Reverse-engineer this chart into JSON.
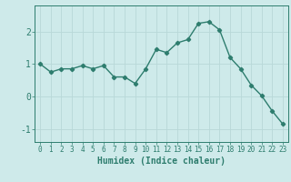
{
  "x": [
    0,
    1,
    2,
    3,
    4,
    5,
    6,
    7,
    8,
    9,
    10,
    11,
    12,
    13,
    14,
    15,
    16,
    17,
    18,
    19,
    20,
    21,
    22,
    23
  ],
  "y": [
    1.0,
    0.75,
    0.85,
    0.85,
    0.95,
    0.85,
    0.95,
    0.6,
    0.6,
    0.4,
    0.85,
    1.45,
    1.35,
    1.65,
    1.75,
    2.25,
    2.3,
    2.05,
    1.2,
    0.85,
    0.35,
    0.02,
    -0.45,
    -0.85
  ],
  "line_color": "#2e7d6e",
  "marker": "D",
  "markersize": 2.2,
  "linewidth": 1.0,
  "xlabel": "Humidex (Indice chaleur)",
  "xlabel_fontsize": 7,
  "xlim": [
    -0.5,
    23.5
  ],
  "ylim": [
    -1.4,
    2.8
  ],
  "yticks": [
    -1,
    0,
    1,
    2
  ],
  "xticks": [
    0,
    1,
    2,
    3,
    4,
    5,
    6,
    7,
    8,
    9,
    10,
    11,
    12,
    13,
    14,
    15,
    16,
    17,
    18,
    19,
    20,
    21,
    22,
    23
  ],
  "bg_color": "#ceeaea",
  "grid_color": "#b8d8d8",
  "tick_color": "#2e7d6e",
  "label_color": "#2e7d6e",
  "xtick_fontsize": 5.5,
  "ytick_fontsize": 7.0
}
